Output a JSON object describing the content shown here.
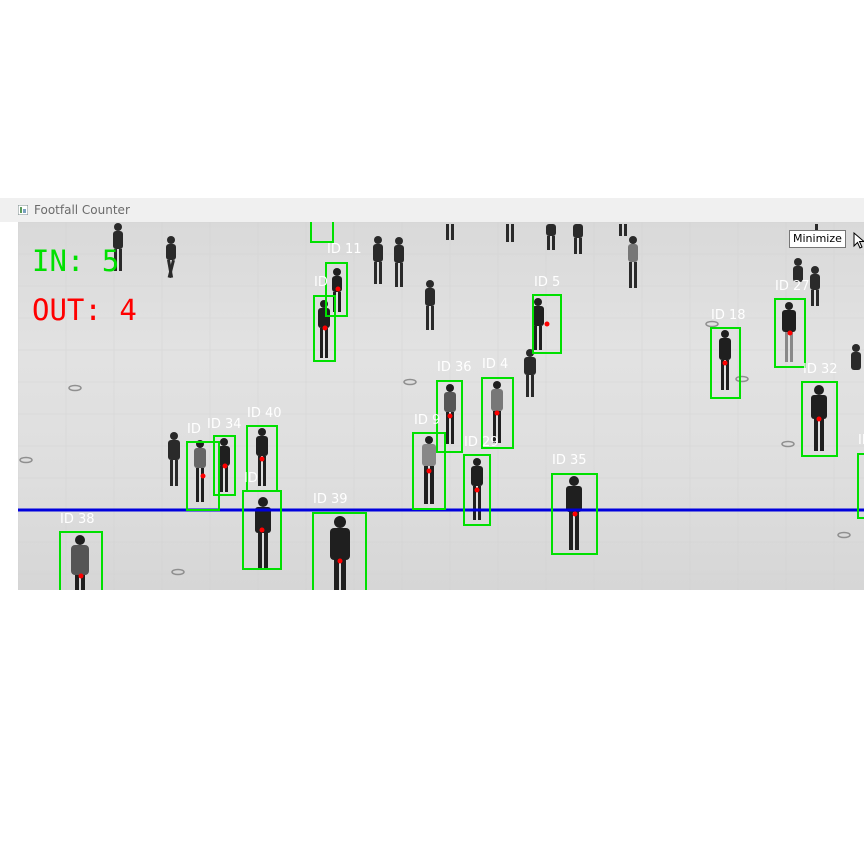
{
  "window": {
    "title": "Footfall Counter"
  },
  "counters": {
    "in_label": "IN:",
    "in_value": "5",
    "in_color": "#00e000",
    "out_label": "OUT:",
    "out_value": "4",
    "out_color": "#ff0000"
  },
  "tooltip": "Minimize",
  "colors": {
    "box": "#00e000",
    "line": "#0000dd",
    "centroid": "#ff0000",
    "id_text": "#ffffff"
  },
  "tracked": [
    {
      "label": "ID 11"
    },
    {
      "label": "ID"
    },
    {
      "label": "ID 5"
    },
    {
      "label": "ID 18"
    },
    {
      "label": "ID 27"
    },
    {
      "label": "ID 36"
    },
    {
      "label": "ID 4"
    },
    {
      "label": "ID 32"
    },
    {
      "label": "ID 40"
    },
    {
      "label": "ID 9"
    },
    {
      "label": "ID 29"
    },
    {
      "label": "ID 35"
    },
    {
      "label": "ID 38"
    },
    {
      "label": "ID 39"
    },
    {
      "label": "ID"
    },
    {
      "label": "ID 34"
    },
    {
      "label": "ID"
    },
    {
      "label": "ID"
    }
  ]
}
